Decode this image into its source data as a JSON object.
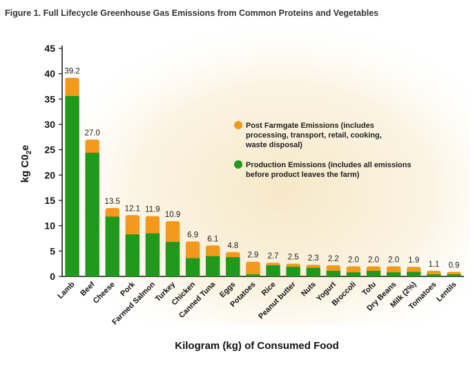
{
  "figure_title": "Figure 1. Full Lifecycle Greenhouse Gas Emissions from Common Proteins and Vegetables",
  "colors": {
    "production": "#1f9a1c",
    "post_farmgate": "#f39a1c",
    "background_warm": "#f6e7c4"
  },
  "chart_data": {
    "type": "bar",
    "stacked": true,
    "title": "Figure 1. Full Lifecycle Greenhouse Gas Emissions from Common Proteins and Vegetables",
    "xlabel": "Kilogram (kg) of Consumed Food",
    "ylabel": "kg C0",
    "ylabel_subscript": "2",
    "ylabel_suffix": "e",
    "ylim": [
      0,
      45
    ],
    "yticks": [
      0,
      5,
      10,
      15,
      20,
      25,
      30,
      35,
      40,
      45
    ],
    "grid": false,
    "legend_position": "right",
    "categories": [
      "Lamb",
      "Beef",
      "Cheese",
      "Pork",
      "Farmed Salmon",
      "Turkey",
      "Chicken",
      "Canned Tuna",
      "Eggs",
      "Potatoes",
      "Rice",
      "Peanut butter",
      "Nuts",
      "Yogurt",
      "Broccoli",
      "Tofu",
      "Dry Beans",
      "Milk (2%)",
      "Tomatoes",
      "Lentils"
    ],
    "totals": [
      39.2,
      27.0,
      13.5,
      12.1,
      11.9,
      10.9,
      6.9,
      6.1,
      4.8,
      2.9,
      2.7,
      2.5,
      2.3,
      2.2,
      2.0,
      2.0,
      2.0,
      1.9,
      1.1,
      0.9
    ],
    "total_labels": [
      "39.2",
      "27.0",
      "13.5",
      "12.1",
      "11.9",
      "10.9",
      "6.9",
      "6.1",
      "4.8",
      "2.9",
      "2.7",
      "2.5",
      "2.3",
      "2.2",
      "2.0",
      "2.0",
      "2.0",
      "1.9",
      "1.1",
      "0.9"
    ],
    "series": [
      {
        "name": "Production Emissions (includes all emissions before product leaves the farm)",
        "legend_lines": [
          "Production Emissions (includes all emissions",
          "before product leaves the farm)"
        ],
        "color": "#1f9a1c",
        "values": [
          35.6,
          24.4,
          11.8,
          8.3,
          8.5,
          6.8,
          3.6,
          4.0,
          3.8,
          0.4,
          2.2,
          1.9,
          1.7,
          1.1,
          0.8,
          1.1,
          0.8,
          0.9,
          0.4,
          0.4
        ]
      },
      {
        "name": "Post Farmgate Emissions (includes processing, transport, retail, cooking, waste disposal)",
        "legend_lines": [
          "Post Farmgate Emissions (includes",
          "processing, transport, retail, cooking,",
          "waste disposal)"
        ],
        "color": "#f39a1c",
        "values": [
          3.6,
          2.6,
          1.7,
          3.8,
          3.4,
          4.1,
          3.3,
          2.1,
          1.0,
          2.5,
          0.5,
          0.6,
          0.6,
          1.1,
          1.2,
          0.9,
          1.2,
          1.0,
          0.7,
          0.5
        ]
      }
    ]
  }
}
